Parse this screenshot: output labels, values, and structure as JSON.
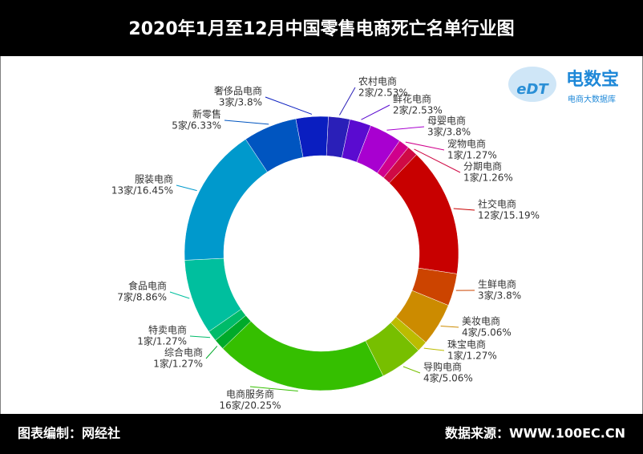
{
  "chart_data": {
    "type": "donut",
    "title": "2020年1月至12月中国零售电商死亡名单行业图",
    "categories": [
      "农村电商",
      "鲜花电商",
      "母婴电商",
      "宠物电商",
      "分期电商",
      "社交电商",
      "生鲜电商",
      "美妆电商",
      "珠宝电商",
      "导购电商",
      "电商服务商",
      "综合电商",
      "特卖电商",
      "食品电商",
      "服装电商",
      "新零售",
      "奢侈品电商"
    ],
    "values": [
      2.53,
      2.53,
      3.8,
      1.27,
      1.26,
      15.19,
      3.8,
      5.06,
      1.27,
      5.06,
      20.25,
      1.27,
      1.27,
      8.86,
      16.45,
      6.33,
      3.8
    ],
    "value_labels": [
      "2家/2.53%",
      "2家/2.53%",
      "3家/3.8%",
      "1家/1.27%",
      "1家/1.26%",
      "12家/15.19%",
      "3家/3.8%",
      "4家/5.06%",
      "1家/1.27%",
      "4家/5.06%",
      "16家/20.25%",
      "1家/1.27%",
      "1家/1.27%",
      "7家/8.86%",
      "13家/16.45%",
      "5家/6.33%",
      "3家/3.8%"
    ],
    "colors": [
      "#2a1fb8",
      "#5a0bd0",
      "#a800d0",
      "#d0008c",
      "#cf0a45",
      "#c80000",
      "#cc4400",
      "#cc8b00",
      "#bcbc00",
      "#77bf00",
      "#35bf00",
      "#00aa2a",
      "#00bb6a",
      "#00bf9e",
      "#0099cc",
      "#0055c0",
      "#0a1ec0"
    ]
  },
  "logo": {
    "name": "电数宝",
    "mark": "eDT",
    "subtitle": "电商大数据库"
  },
  "footer": {
    "left": "图表编制：网经社",
    "right": "数据来源：WWW.100EC.CN"
  }
}
